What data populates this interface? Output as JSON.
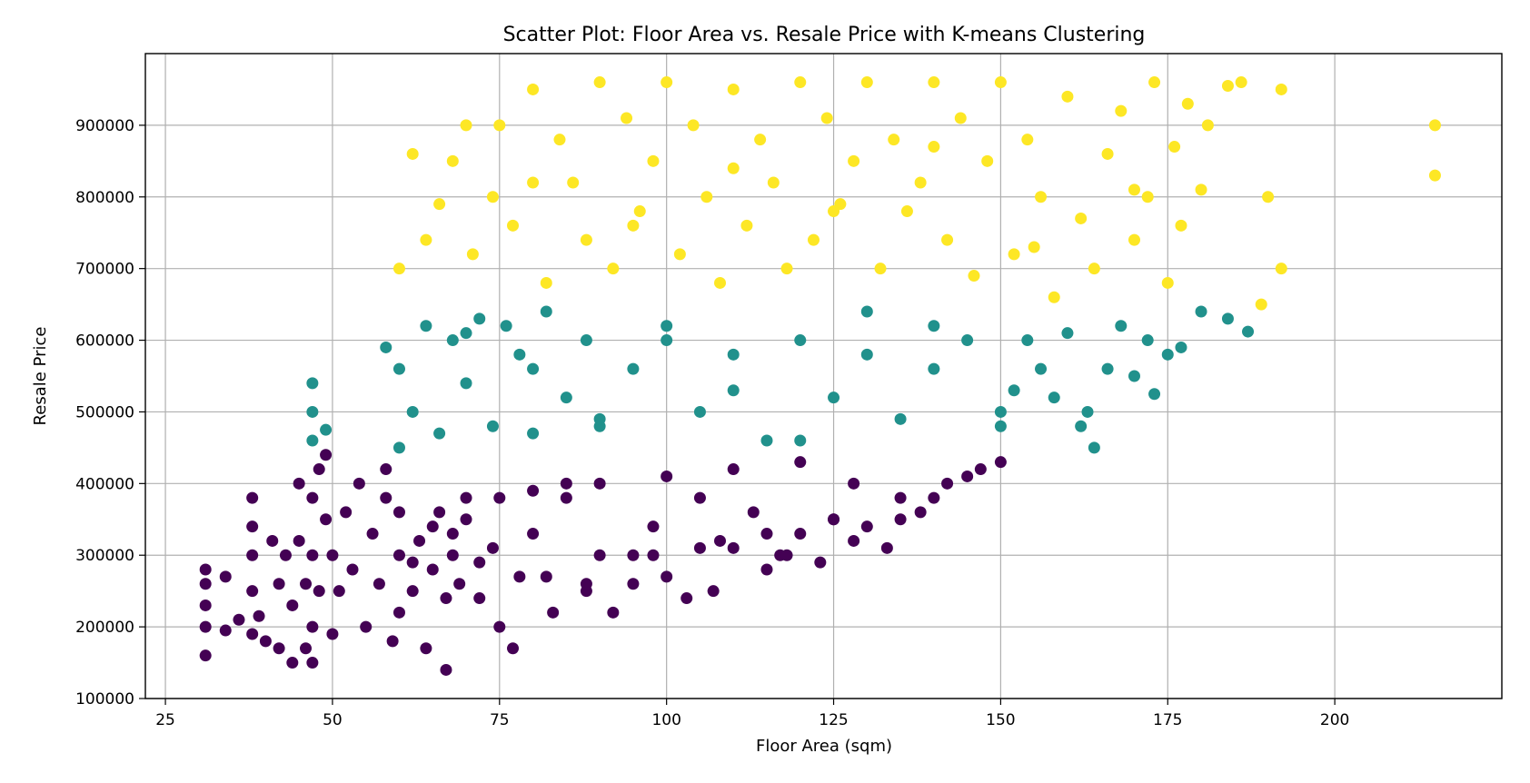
{
  "chart_data": {
    "type": "scatter",
    "title": "Scatter Plot: Floor Area vs. Resale Price with K-means Clustering",
    "xlabel": "Floor Area (sqm)",
    "ylabel": "Resale Price",
    "xlim": [
      22,
      225
    ],
    "ylim": [
      100000,
      1000000
    ],
    "xticks": [
      25,
      50,
      75,
      100,
      125,
      150,
      175,
      200
    ],
    "xtick_labels": [
      "25",
      "50",
      "75",
      "100",
      "125",
      "150",
      "175",
      "200"
    ],
    "yticks": [
      100000,
      200000,
      300000,
      400000,
      500000,
      600000,
      700000,
      800000,
      900000
    ],
    "ytick_labels": [
      "100000",
      "200000",
      "300000",
      "400000",
      "500000",
      "600000",
      "700000",
      "800000",
      "900000"
    ],
    "grid": true,
    "legend": false,
    "colors": {
      "cluster_low": "#440154",
      "cluster_mid": "#21918c",
      "cluster_high": "#fde725"
    },
    "series": [
      {
        "cluster": "low",
        "color": "#440154",
        "x": [
          31,
          31,
          31,
          31,
          31,
          34,
          34,
          36,
          38,
          38,
          38,
          38,
          38,
          39,
          40,
          41,
          42,
          42,
          43,
          44,
          44,
          45,
          45,
          46,
          46,
          47,
          47,
          47,
          47,
          48,
          48,
          49,
          49,
          50,
          50,
          51,
          52,
          53,
          54,
          55,
          56,
          57,
          58,
          59,
          60,
          60,
          62,
          63,
          64,
          65,
          66,
          67,
          67,
          68,
          69,
          70,
          72,
          74,
          75,
          77,
          80,
          82,
          83,
          85,
          88,
          90,
          92,
          95,
          98,
          100,
          103,
          105,
          107,
          110,
          113,
          115,
          117,
          120,
          123,
          125,
          128,
          130,
          133,
          135,
          138,
          140,
          142,
          145,
          147,
          150,
          60,
          70,
          80,
          90,
          100,
          110,
          120,
          65,
          75,
          85,
          95,
          105,
          115,
          125,
          135,
          58,
          62,
          68,
          72,
          78,
          88,
          98,
          108,
          118,
          128
        ],
        "y": [
          160000,
          200000,
          230000,
          260000,
          280000,
          195000,
          270000,
          210000,
          300000,
          340000,
          380000,
          250000,
          190000,
          215000,
          180000,
          320000,
          260000,
          170000,
          300000,
          150000,
          230000,
          320000,
          400000,
          170000,
          260000,
          150000,
          200000,
          300000,
          380000,
          420000,
          250000,
          350000,
          440000,
          190000,
          300000,
          250000,
          360000,
          280000,
          400000,
          200000,
          330000,
          260000,
          380000,
          180000,
          220000,
          300000,
          250000,
          320000,
          170000,
          280000,
          360000,
          140000,
          240000,
          300000,
          260000,
          350000,
          290000,
          310000,
          200000,
          170000,
          330000,
          270000,
          220000,
          380000,
          250000,
          300000,
          220000,
          260000,
          340000,
          270000,
          240000,
          380000,
          250000,
          310000,
          360000,
          280000,
          300000,
          330000,
          290000,
          350000,
          320000,
          340000,
          310000,
          350000,
          360000,
          380000,
          400000,
          410000,
          420000,
          430000,
          360000,
          380000,
          390000,
          400000,
          410000,
          420000,
          430000,
          340000,
          380000,
          400000,
          300000,
          310000,
          330000,
          350000,
          380000,
          420000,
          290000,
          330000,
          240000,
          270000,
          260000,
          300000,
          320000,
          300000,
          400000
        ]
      },
      {
        "cluster": "mid",
        "color": "#21918c",
        "x": [
          47,
          47,
          47,
          49,
          58,
          60,
          62,
          64,
          66,
          68,
          70,
          72,
          74,
          76,
          78,
          80,
          82,
          85,
          88,
          90,
          95,
          100,
          105,
          110,
          115,
          120,
          125,
          130,
          135,
          140,
          145,
          150,
          152,
          154,
          156,
          158,
          160,
          162,
          163,
          164,
          166,
          168,
          170,
          172,
          173,
          175,
          177,
          180,
          184,
          187,
          60,
          70,
          80,
          90,
          100,
          110,
          120,
          130,
          140,
          150
        ],
        "y": [
          460000,
          500000,
          540000,
          475000,
          590000,
          560000,
          500000,
          620000,
          470000,
          600000,
          540000,
          630000,
          480000,
          620000,
          580000,
          470000,
          640000,
          520000,
          600000,
          480000,
          560000,
          620000,
          500000,
          580000,
          460000,
          600000,
          520000,
          640000,
          490000,
          560000,
          600000,
          480000,
          530000,
          600000,
          560000,
          520000,
          610000,
          480000,
          500000,
          450000,
          560000,
          620000,
          550000,
          600000,
          525000,
          580000,
          590000,
          640000,
          630000,
          612000,
          450000,
          610000,
          560000,
          490000,
          600000,
          530000,
          460000,
          580000,
          620000,
          500000
        ],
        "x_extra": []
      },
      {
        "cluster": "high",
        "color": "#fde725",
        "x": [
          60,
          62,
          64,
          66,
          68,
          70,
          71,
          74,
          75,
          77,
          80,
          82,
          84,
          86,
          88,
          90,
          92,
          94,
          96,
          98,
          100,
          102,
          104,
          106,
          108,
          110,
          112,
          114,
          116,
          118,
          120,
          122,
          124,
          126,
          128,
          130,
          132,
          134,
          136,
          138,
          140,
          142,
          144,
          146,
          148,
          150,
          152,
          154,
          156,
          158,
          160,
          162,
          164,
          166,
          168,
          170,
          172,
          173,
          175,
          176,
          177,
          178,
          180,
          181,
          184,
          186,
          189,
          190,
          192,
          192,
          215,
          215,
          80,
          95,
          110,
          125,
          140,
          155,
          170
        ],
        "y": [
          700000,
          860000,
          740000,
          790000,
          850000,
          900000,
          720000,
          800000,
          900000,
          760000,
          950000,
          680000,
          880000,
          820000,
          740000,
          960000,
          700000,
          910000,
          780000,
          850000,
          960000,
          720000,
          900000,
          800000,
          680000,
          950000,
          760000,
          880000,
          820000,
          700000,
          960000,
          740000,
          910000,
          790000,
          850000,
          960000,
          700000,
          880000,
          780000,
          820000,
          960000,
          740000,
          910000,
          690000,
          850000,
          960000,
          720000,
          880000,
          800000,
          660000,
          940000,
          770000,
          700000,
          860000,
          920000,
          740000,
          800000,
          960000,
          680000,
          870000,
          760000,
          930000,
          810000,
          900000,
          955000,
          960000,
          650000,
          800000,
          700000,
          950000,
          830000,
          900000,
          820000,
          760000,
          840000,
          780000,
          870000,
          730000,
          810000
        ]
      }
    ]
  }
}
